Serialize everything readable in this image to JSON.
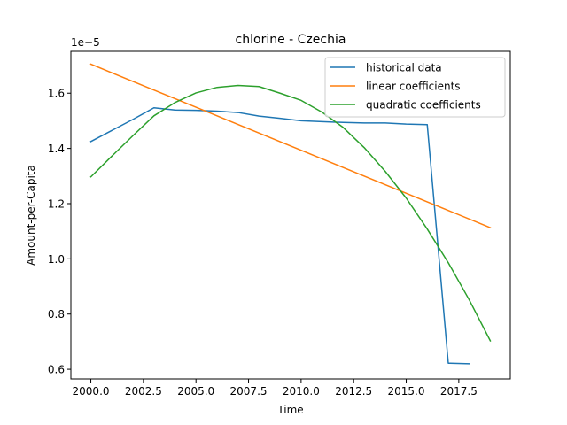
{
  "chart_data": {
    "type": "line",
    "title": "chlorine - Czechia",
    "xlabel": "Time",
    "ylabel": "Amount-per-Capita",
    "offset_label": "1e−5",
    "xlim": [
      1999.05,
      2019.95
    ],
    "ylim": [
      0.565,
      1.7515
    ],
    "xticks": [
      2000,
      2002.5,
      2005,
      2007.5,
      2010,
      2012.5,
      2015,
      2017.5
    ],
    "xtick_labels": [
      "2000.0",
      "2002.5",
      "2005.0",
      "2007.5",
      "2010.0",
      "2012.5",
      "2015.0",
      "2017.5"
    ],
    "yticks": [
      0.6,
      0.8,
      1.0,
      1.2,
      1.4,
      1.6
    ],
    "ytick_labels": [
      "0.6",
      "0.8",
      "1.0",
      "1.2",
      "1.4",
      "1.6"
    ],
    "legend_position": "top-right",
    "series": [
      {
        "name": "historical data",
        "color": "#1f77b4",
        "x": [
          2000,
          2001,
          2002,
          2003,
          2004,
          2005,
          2006,
          2007,
          2008,
          2009,
          2010,
          2011,
          2012,
          2013,
          2014,
          2015,
          2016,
          2017,
          2018
        ],
        "y": [
          1.425,
          1.465,
          1.505,
          1.547,
          1.539,
          1.538,
          1.535,
          1.53,
          1.517,
          1.509,
          1.5,
          1.497,
          1.494,
          1.492,
          1.492,
          1.488,
          1.486,
          0.622,
          0.62
        ]
      },
      {
        "name": "linear coefficients",
        "color": "#ff7f0e",
        "x": [
          2000,
          2019
        ],
        "y": [
          1.705,
          1.113
        ]
      },
      {
        "name": "quadratic coefficients",
        "color": "#2ca02c",
        "x": [
          2000,
          2001,
          2002,
          2003,
          2004,
          2005,
          2006,
          2007,
          2008,
          2009,
          2010,
          2011,
          2012,
          2013,
          2014,
          2015,
          2016,
          2017,
          2018,
          2019
        ],
        "y": [
          1.297,
          1.372,
          1.446,
          1.518,
          1.566,
          1.601,
          1.621,
          1.628,
          1.624,
          1.6,
          1.574,
          1.531,
          1.476,
          1.403,
          1.317,
          1.22,
          1.108,
          0.986,
          0.851,
          0.703
        ]
      }
    ]
  }
}
